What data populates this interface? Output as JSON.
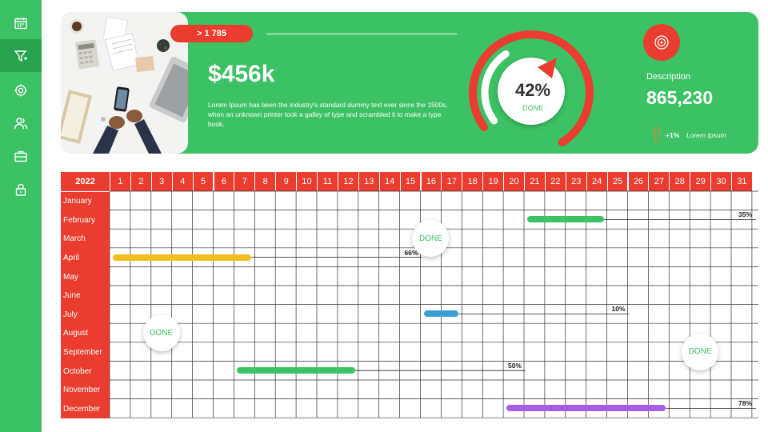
{
  "sidebar": {
    "items": [
      {
        "icon": "calendar-icon",
        "active": false
      },
      {
        "icon": "funnel-icon",
        "active": true
      },
      {
        "icon": "gear-icon",
        "active": false
      },
      {
        "icon": "users-icon",
        "active": false
      },
      {
        "icon": "briefcase-icon",
        "active": false
      },
      {
        "icon": "lock-icon",
        "active": false
      }
    ]
  },
  "header": {
    "badge": "> 1 785",
    "value": "$456k",
    "description": "Lorem Ipsum has been the industry's standard dummy text ever since the 1500s, when an unknown printer took a galley of type and scrambled it to make a type book.",
    "gauge": {
      "percent": "42%",
      "progress": 0.42,
      "label": "DONE"
    },
    "stat_label": "Description",
    "stat_value": "865,230",
    "change": "+1%",
    "change_label": "Lorem Ipsum"
  },
  "colors": {
    "green": "#3cc164",
    "red": "#ea3d2f",
    "yellow": "#f4bf1e",
    "blue": "#3a9fd4",
    "purple": "#a35ee8"
  },
  "gantt": {
    "year": "2022",
    "days": [
      "1",
      "2",
      "3",
      "4",
      "5",
      "6",
      "7",
      "8",
      "9",
      "10",
      "11",
      "12",
      "13",
      "14",
      "15",
      "16",
      "17",
      "18",
      "19",
      "20",
      "21",
      "22",
      "23",
      "24",
      "25",
      "26",
      "27",
      "28",
      "29",
      "30",
      "31"
    ],
    "months": [
      "January",
      "February",
      "March",
      "April",
      "May",
      "June",
      "July",
      "August",
      "September",
      "October",
      "November",
      "December"
    ],
    "tasks": [
      {
        "month": "February",
        "start": 21,
        "end": 24,
        "percent": "35%",
        "color": "#3cc164"
      },
      {
        "month": "April",
        "start": 1,
        "end": 7,
        "percent": "66%",
        "color": "#f4bf1e"
      },
      {
        "month": "July",
        "start": 16,
        "end": 17,
        "percent": "10%",
        "color": "#3a9fd4"
      },
      {
        "month": "October",
        "start": 7,
        "end": 12,
        "percent": "50%",
        "color": "#3cc164"
      },
      {
        "month": "December",
        "start": 20,
        "end": 27,
        "percent": "78%",
        "color": "#a35ee8"
      }
    ],
    "done_markers": [
      {
        "month": "March",
        "day": 16,
        "label": "DONE"
      },
      {
        "month": "August",
        "day": 3,
        "label": "DONE"
      },
      {
        "month": "September",
        "day": 29,
        "label": "DONE"
      }
    ]
  }
}
